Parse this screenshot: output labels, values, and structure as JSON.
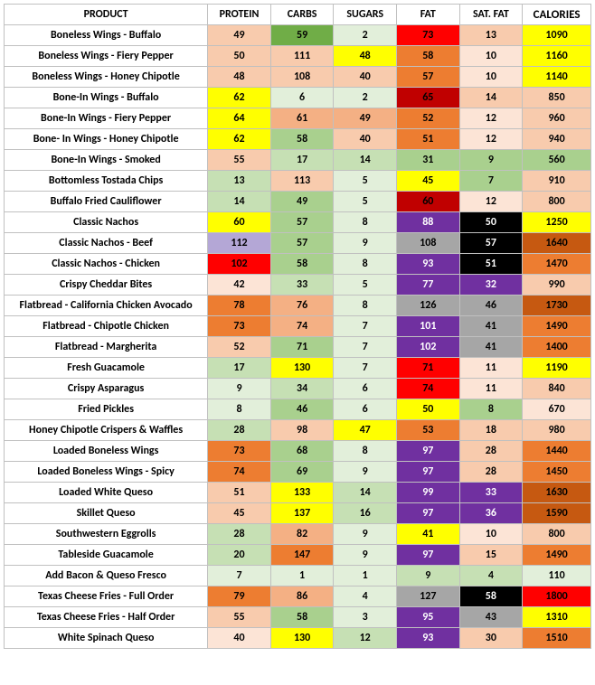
{
  "headers": {
    "product": "PRODUCT",
    "protein": "PROTEIN",
    "carbs": "CARBS",
    "sugars": "SUGARS",
    "fat": "FAT",
    "satfat": "SAT. FAT",
    "calories": "CALORIES"
  },
  "colors": {
    "white": "#ffffff",
    "ltgreen1": "#e2efda",
    "ltgreen2": "#c6e0b4",
    "green": "#a9d08e",
    "green2": "#70ad47",
    "tan1": "#fce4d6",
    "tan2": "#f8cbad",
    "orange1": "#f4b084",
    "orange2": "#ed7d31",
    "yellow": "#ffff00",
    "red": "#ff0000",
    "darkred": "#c00000",
    "purple": "#7030a0",
    "lilac": "#b4a7d6",
    "gray": "#a6a6a6",
    "black": "#000000",
    "darkorange": "#c65911"
  },
  "rows": [
    {
      "product": "Boneless Wings - Buffalo",
      "cells": [
        {
          "v": "49",
          "bg": "tan2",
          "fg": "#000"
        },
        {
          "v": "59",
          "bg": "green2",
          "fg": "#000"
        },
        {
          "v": "2",
          "bg": "ltgreen1",
          "fg": "#000"
        },
        {
          "v": "73",
          "bg": "red",
          "fg": "#000"
        },
        {
          "v": "13",
          "bg": "tan2",
          "fg": "#000"
        },
        {
          "v": "1090",
          "bg": "yellow",
          "fg": "#000"
        }
      ]
    },
    {
      "product": "Boneless Wings - Fiery Pepper",
      "cells": [
        {
          "v": "50",
          "bg": "tan2",
          "fg": "#000"
        },
        {
          "v": "111",
          "bg": "tan2",
          "fg": "#000"
        },
        {
          "v": "48",
          "bg": "yellow",
          "fg": "#000"
        },
        {
          "v": "58",
          "bg": "orange2",
          "fg": "#000"
        },
        {
          "v": "10",
          "bg": "tan1",
          "fg": "#000"
        },
        {
          "v": "1160",
          "bg": "yellow",
          "fg": "#000"
        }
      ]
    },
    {
      "product": "Boneless Wings - Honey Chipotle",
      "cells": [
        {
          "v": "48",
          "bg": "tan2",
          "fg": "#000"
        },
        {
          "v": "108",
          "bg": "tan2",
          "fg": "#000"
        },
        {
          "v": "40",
          "bg": "tan2",
          "fg": "#000"
        },
        {
          "v": "57",
          "bg": "orange2",
          "fg": "#000"
        },
        {
          "v": "10",
          "bg": "tan1",
          "fg": "#000"
        },
        {
          "v": "1140",
          "bg": "yellow",
          "fg": "#000"
        }
      ]
    },
    {
      "product": "Bone-In Wings - Buffalo",
      "cells": [
        {
          "v": "62",
          "bg": "yellow",
          "fg": "#000"
        },
        {
          "v": "6",
          "bg": "ltgreen1",
          "fg": "#000"
        },
        {
          "v": "2",
          "bg": "ltgreen1",
          "fg": "#000"
        },
        {
          "v": "65",
          "bg": "darkred",
          "fg": "#000"
        },
        {
          "v": "14",
          "bg": "tan2",
          "fg": "#000"
        },
        {
          "v": "850",
          "bg": "tan2",
          "fg": "#000"
        }
      ]
    },
    {
      "product": "Bone-In Wings - Fiery Pepper",
      "cells": [
        {
          "v": "64",
          "bg": "yellow",
          "fg": "#000"
        },
        {
          "v": "61",
          "bg": "orange1",
          "fg": "#000"
        },
        {
          "v": "49",
          "bg": "orange1",
          "fg": "#000"
        },
        {
          "v": "52",
          "bg": "orange2",
          "fg": "#000"
        },
        {
          "v": "12",
          "bg": "tan1",
          "fg": "#000"
        },
        {
          "v": "960",
          "bg": "tan2",
          "fg": "#000"
        }
      ]
    },
    {
      "product": "Bone- In Wings - Honey Chipotle",
      "cells": [
        {
          "v": "62",
          "bg": "yellow",
          "fg": "#000"
        },
        {
          "v": "58",
          "bg": "green",
          "fg": "#000"
        },
        {
          "v": "40",
          "bg": "tan2",
          "fg": "#000"
        },
        {
          "v": "51",
          "bg": "orange2",
          "fg": "#000"
        },
        {
          "v": "12",
          "bg": "tan1",
          "fg": "#000"
        },
        {
          "v": "940",
          "bg": "tan2",
          "fg": "#000"
        }
      ]
    },
    {
      "product": "Bone-In Wings - Smoked",
      "cells": [
        {
          "v": "55",
          "bg": "tan2",
          "fg": "#000"
        },
        {
          "v": "17",
          "bg": "ltgreen2",
          "fg": "#000"
        },
        {
          "v": "14",
          "bg": "ltgreen2",
          "fg": "#000"
        },
        {
          "v": "31",
          "bg": "green",
          "fg": "#000"
        },
        {
          "v": "9",
          "bg": "green",
          "fg": "#000"
        },
        {
          "v": "560",
          "bg": "green",
          "fg": "#000"
        }
      ]
    },
    {
      "product": "Bottomless Tostada Chips",
      "cells": [
        {
          "v": "13",
          "bg": "ltgreen2",
          "fg": "#000"
        },
        {
          "v": "113",
          "bg": "tan2",
          "fg": "#000"
        },
        {
          "v": "5",
          "bg": "ltgreen1",
          "fg": "#000"
        },
        {
          "v": "45",
          "bg": "yellow",
          "fg": "#000"
        },
        {
          "v": "7",
          "bg": "green",
          "fg": "#000"
        },
        {
          "v": "910",
          "bg": "tan2",
          "fg": "#000"
        }
      ]
    },
    {
      "product": "Buffalo Fried Cauliflower",
      "cells": [
        {
          "v": "14",
          "bg": "ltgreen2",
          "fg": "#000"
        },
        {
          "v": "49",
          "bg": "green",
          "fg": "#000"
        },
        {
          "v": "5",
          "bg": "ltgreen1",
          "fg": "#000"
        },
        {
          "v": "60",
          "bg": "darkred",
          "fg": "#000"
        },
        {
          "v": "12",
          "bg": "tan1",
          "fg": "#000"
        },
        {
          "v": "800",
          "bg": "tan2",
          "fg": "#000"
        }
      ]
    },
    {
      "product": "Classic Nachos",
      "cells": [
        {
          "v": "60",
          "bg": "yellow",
          "fg": "#000"
        },
        {
          "v": "57",
          "bg": "green",
          "fg": "#000"
        },
        {
          "v": "8",
          "bg": "ltgreen1",
          "fg": "#000"
        },
        {
          "v": "88",
          "bg": "purple",
          "fg": "#fff"
        },
        {
          "v": "50",
          "bg": "black",
          "fg": "#fff"
        },
        {
          "v": "1250",
          "bg": "yellow",
          "fg": "#000"
        }
      ]
    },
    {
      "product": "Classic Nachos - Beef",
      "cells": [
        {
          "v": "112",
          "bg": "lilac",
          "fg": "#000"
        },
        {
          "v": "57",
          "bg": "green",
          "fg": "#000"
        },
        {
          "v": "9",
          "bg": "ltgreen1",
          "fg": "#000"
        },
        {
          "v": "108",
          "bg": "gray",
          "fg": "#000"
        },
        {
          "v": "57",
          "bg": "black",
          "fg": "#fff"
        },
        {
          "v": "1640",
          "bg": "darkorange",
          "fg": "#000"
        }
      ]
    },
    {
      "product": "Classic Nachos - Chicken",
      "cells": [
        {
          "v": "102",
          "bg": "red",
          "fg": "#000"
        },
        {
          "v": "58",
          "bg": "green",
          "fg": "#000"
        },
        {
          "v": "8",
          "bg": "ltgreen1",
          "fg": "#000"
        },
        {
          "v": "93",
          "bg": "purple",
          "fg": "#fff"
        },
        {
          "v": "51",
          "bg": "black",
          "fg": "#fff"
        },
        {
          "v": "1470",
          "bg": "orange2",
          "fg": "#000"
        }
      ]
    },
    {
      "product": "Crispy Cheddar Bites",
      "cells": [
        {
          "v": "42",
          "bg": "tan1",
          "fg": "#000"
        },
        {
          "v": "33",
          "bg": "ltgreen2",
          "fg": "#000"
        },
        {
          "v": "5",
          "bg": "ltgreen1",
          "fg": "#000"
        },
        {
          "v": "77",
          "bg": "purple",
          "fg": "#fff"
        },
        {
          "v": "32",
          "bg": "purple",
          "fg": "#fff"
        },
        {
          "v": "990",
          "bg": "tan2",
          "fg": "#000"
        }
      ]
    },
    {
      "product": "Flatbread - California Chicken Avocado",
      "cells": [
        {
          "v": "78",
          "bg": "orange2",
          "fg": "#000"
        },
        {
          "v": "76",
          "bg": "orange1",
          "fg": "#000"
        },
        {
          "v": "8",
          "bg": "ltgreen1",
          "fg": "#000"
        },
        {
          "v": "126",
          "bg": "gray",
          "fg": "#000"
        },
        {
          "v": "46",
          "bg": "gray",
          "fg": "#000"
        },
        {
          "v": "1730",
          "bg": "darkorange",
          "fg": "#000"
        }
      ]
    },
    {
      "product": "Flatbread - Chipotle Chicken",
      "cells": [
        {
          "v": "73",
          "bg": "orange2",
          "fg": "#000"
        },
        {
          "v": "74",
          "bg": "orange1",
          "fg": "#000"
        },
        {
          "v": "7",
          "bg": "ltgreen1",
          "fg": "#000"
        },
        {
          "v": "101",
          "bg": "purple",
          "fg": "#fff"
        },
        {
          "v": "41",
          "bg": "gray",
          "fg": "#000"
        },
        {
          "v": "1490",
          "bg": "orange2",
          "fg": "#000"
        }
      ]
    },
    {
      "product": "Flatbread - Margherita",
      "cells": [
        {
          "v": "52",
          "bg": "tan2",
          "fg": "#000"
        },
        {
          "v": "71",
          "bg": "green",
          "fg": "#000"
        },
        {
          "v": "7",
          "bg": "ltgreen1",
          "fg": "#000"
        },
        {
          "v": "102",
          "bg": "purple",
          "fg": "#fff"
        },
        {
          "v": "41",
          "bg": "gray",
          "fg": "#000"
        },
        {
          "v": "1400",
          "bg": "orange2",
          "fg": "#000"
        }
      ]
    },
    {
      "product": "Fresh Guacamole",
      "cells": [
        {
          "v": "17",
          "bg": "ltgreen2",
          "fg": "#000"
        },
        {
          "v": "130",
          "bg": "yellow",
          "fg": "#000"
        },
        {
          "v": "7",
          "bg": "ltgreen1",
          "fg": "#000"
        },
        {
          "v": "71",
          "bg": "red",
          "fg": "#000"
        },
        {
          "v": "11",
          "bg": "tan1",
          "fg": "#000"
        },
        {
          "v": "1190",
          "bg": "yellow",
          "fg": "#000"
        }
      ]
    },
    {
      "product": "Crispy Asparagus",
      "cells": [
        {
          "v": "9",
          "bg": "ltgreen1",
          "fg": "#000"
        },
        {
          "v": "34",
          "bg": "ltgreen2",
          "fg": "#000"
        },
        {
          "v": "6",
          "bg": "ltgreen1",
          "fg": "#000"
        },
        {
          "v": "74",
          "bg": "red",
          "fg": "#000"
        },
        {
          "v": "11",
          "bg": "tan1",
          "fg": "#000"
        },
        {
          "v": "840",
          "bg": "tan2",
          "fg": "#000"
        }
      ]
    },
    {
      "product": "Fried Pickles",
      "cells": [
        {
          "v": "8",
          "bg": "ltgreen1",
          "fg": "#000"
        },
        {
          "v": "46",
          "bg": "green",
          "fg": "#000"
        },
        {
          "v": "6",
          "bg": "ltgreen1",
          "fg": "#000"
        },
        {
          "v": "50",
          "bg": "yellow",
          "fg": "#000"
        },
        {
          "v": "8",
          "bg": "green",
          "fg": "#000"
        },
        {
          "v": "670",
          "bg": "tan1",
          "fg": "#000"
        }
      ]
    },
    {
      "product": "Honey Chipotle Crispers & Waffles",
      "cells": [
        {
          "v": "28",
          "bg": "ltgreen2",
          "fg": "#000"
        },
        {
          "v": "98",
          "bg": "tan2",
          "fg": "#000"
        },
        {
          "v": "47",
          "bg": "yellow",
          "fg": "#000"
        },
        {
          "v": "53",
          "bg": "orange2",
          "fg": "#000"
        },
        {
          "v": "18",
          "bg": "tan2",
          "fg": "#000"
        },
        {
          "v": "980",
          "bg": "tan2",
          "fg": "#000"
        }
      ]
    },
    {
      "product": "Loaded Boneless Wings",
      "cells": [
        {
          "v": "73",
          "bg": "orange2",
          "fg": "#000"
        },
        {
          "v": "68",
          "bg": "green",
          "fg": "#000"
        },
        {
          "v": "8",
          "bg": "ltgreen1",
          "fg": "#000"
        },
        {
          "v": "97",
          "bg": "purple",
          "fg": "#fff"
        },
        {
          "v": "28",
          "bg": "tan2",
          "fg": "#000"
        },
        {
          "v": "1440",
          "bg": "orange2",
          "fg": "#000"
        }
      ]
    },
    {
      "product": "Loaded Boneless Wings - Spicy",
      "cells": [
        {
          "v": "74",
          "bg": "orange2",
          "fg": "#000"
        },
        {
          "v": "69",
          "bg": "green",
          "fg": "#000"
        },
        {
          "v": "9",
          "bg": "ltgreen1",
          "fg": "#000"
        },
        {
          "v": "97",
          "bg": "purple",
          "fg": "#fff"
        },
        {
          "v": "28",
          "bg": "tan2",
          "fg": "#000"
        },
        {
          "v": "1450",
          "bg": "orange2",
          "fg": "#000"
        }
      ]
    },
    {
      "product": "Loaded White Queso",
      "cells": [
        {
          "v": "51",
          "bg": "tan2",
          "fg": "#000"
        },
        {
          "v": "133",
          "bg": "yellow",
          "fg": "#000"
        },
        {
          "v": "14",
          "bg": "ltgreen2",
          "fg": "#000"
        },
        {
          "v": "99",
          "bg": "purple",
          "fg": "#fff"
        },
        {
          "v": "33",
          "bg": "purple",
          "fg": "#fff"
        },
        {
          "v": "1630",
          "bg": "darkorange",
          "fg": "#000"
        }
      ]
    },
    {
      "product": "Skillet Queso",
      "cells": [
        {
          "v": "45",
          "bg": "tan2",
          "fg": "#000"
        },
        {
          "v": "137",
          "bg": "yellow",
          "fg": "#000"
        },
        {
          "v": "16",
          "bg": "ltgreen2",
          "fg": "#000"
        },
        {
          "v": "97",
          "bg": "purple",
          "fg": "#fff"
        },
        {
          "v": "36",
          "bg": "purple",
          "fg": "#fff"
        },
        {
          "v": "1590",
          "bg": "darkorange",
          "fg": "#000"
        }
      ]
    },
    {
      "product": "Southwestern Eggrolls",
      "cells": [
        {
          "v": "28",
          "bg": "ltgreen2",
          "fg": "#000"
        },
        {
          "v": "82",
          "bg": "orange1",
          "fg": "#000"
        },
        {
          "v": "9",
          "bg": "ltgreen1",
          "fg": "#000"
        },
        {
          "v": "41",
          "bg": "yellow",
          "fg": "#000"
        },
        {
          "v": "10",
          "bg": "tan1",
          "fg": "#000"
        },
        {
          "v": "800",
          "bg": "tan2",
          "fg": "#000"
        }
      ]
    },
    {
      "product": "Tableside Guacamole",
      "cells": [
        {
          "v": "20",
          "bg": "ltgreen2",
          "fg": "#000"
        },
        {
          "v": "147",
          "bg": "orange2",
          "fg": "#000"
        },
        {
          "v": "9",
          "bg": "ltgreen1",
          "fg": "#000"
        },
        {
          "v": "97",
          "bg": "purple",
          "fg": "#fff"
        },
        {
          "v": "15",
          "bg": "tan2",
          "fg": "#000"
        },
        {
          "v": "1490",
          "bg": "orange2",
          "fg": "#000"
        }
      ]
    },
    {
      "product": "Add Bacon & Queso Fresco",
      "cells": [
        {
          "v": "7",
          "bg": "ltgreen1",
          "fg": "#000"
        },
        {
          "v": "1",
          "bg": "ltgreen1",
          "fg": "#000"
        },
        {
          "v": "1",
          "bg": "ltgreen1",
          "fg": "#000"
        },
        {
          "v": "9",
          "bg": "ltgreen2",
          "fg": "#000"
        },
        {
          "v": "4",
          "bg": "ltgreen2",
          "fg": "#000"
        },
        {
          "v": "110",
          "bg": "ltgreen1",
          "fg": "#000"
        }
      ]
    },
    {
      "product": "Texas Cheese Fries - Full Order",
      "cells": [
        {
          "v": "79",
          "bg": "orange2",
          "fg": "#000"
        },
        {
          "v": "86",
          "bg": "orange1",
          "fg": "#000"
        },
        {
          "v": "4",
          "bg": "ltgreen1",
          "fg": "#000"
        },
        {
          "v": "127",
          "bg": "gray",
          "fg": "#000"
        },
        {
          "v": "58",
          "bg": "black",
          "fg": "#fff"
        },
        {
          "v": "1800",
          "bg": "red",
          "fg": "#000"
        }
      ]
    },
    {
      "product": "Texas Cheese Fries - Half Order",
      "cells": [
        {
          "v": "55",
          "bg": "tan2",
          "fg": "#000"
        },
        {
          "v": "58",
          "bg": "green",
          "fg": "#000"
        },
        {
          "v": "3",
          "bg": "ltgreen1",
          "fg": "#000"
        },
        {
          "v": "95",
          "bg": "purple",
          "fg": "#fff"
        },
        {
          "v": "43",
          "bg": "gray",
          "fg": "#000"
        },
        {
          "v": "1310",
          "bg": "yellow",
          "fg": "#000"
        }
      ]
    },
    {
      "product": "White Spinach Queso",
      "cells": [
        {
          "v": "40",
          "bg": "tan1",
          "fg": "#000"
        },
        {
          "v": "130",
          "bg": "yellow",
          "fg": "#000"
        },
        {
          "v": "12",
          "bg": "ltgreen2",
          "fg": "#000"
        },
        {
          "v": "93",
          "bg": "purple",
          "fg": "#fff"
        },
        {
          "v": "30",
          "bg": "tan2",
          "fg": "#000"
        },
        {
          "v": "1510",
          "bg": "orange2",
          "fg": "#000"
        }
      ]
    }
  ]
}
